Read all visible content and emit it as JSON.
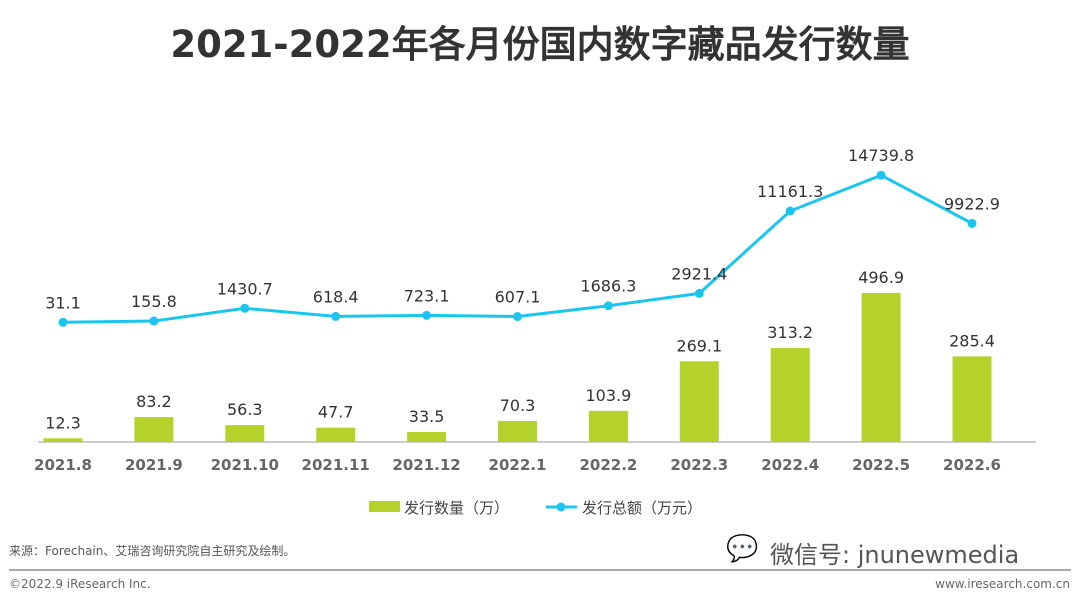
{
  "chart_data": {
    "type": "bar+line",
    "title": "2021-2022年各月份国内数字藏品发行数量",
    "categories": [
      "2021.8",
      "2021.9",
      "2021.10",
      "2021.11",
      "2021.12",
      "2022.1",
      "2022.2",
      "2022.3",
      "2022.4",
      "2022.5",
      "2022.6"
    ],
    "series": [
      {
        "name": "发行数量（万）",
        "type": "bar",
        "color": "#b5d22c",
        "values": [
          12.3,
          83.2,
          56.3,
          47.7,
          33.5,
          70.3,
          103.9,
          269.1,
          313.2,
          496.9,
          285.4
        ],
        "labels": [
          "12.3",
          "83.2",
          "56.3",
          "47.7",
          "33.5",
          "70.3",
          "103.9",
          "269.1",
          "313.2",
          "496.9",
          "285.4"
        ]
      },
      {
        "name": "发行总额（万元）",
        "type": "line",
        "color": "#1ac6f0",
        "values": [
          31.1,
          155.8,
          1430.7,
          618.4,
          723.1,
          607.1,
          1686.3,
          2921.4,
          11161.3,
          14739.8,
          9922.9
        ],
        "labels": [
          "31.1",
          "155.8",
          "1430.7",
          "618.4",
          "723.1",
          "607.1",
          "1686.3",
          "2921.4",
          "11161.3",
          "14739.8",
          "9922.9"
        ]
      }
    ],
    "legend": "bottom-center",
    "grid": false
  },
  "footer": {
    "source": "来源：Forechain、艾瑞咨询研究院自主研究及绘制。",
    "watermark": "微信号: jnunewmedia",
    "copyright": "©2022.9 iResearch Inc.",
    "site": "www.iresearch.com.cn"
  }
}
